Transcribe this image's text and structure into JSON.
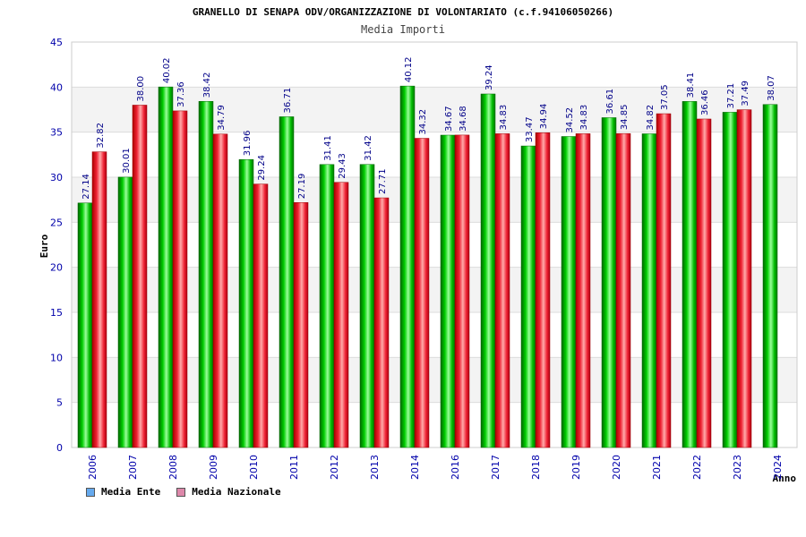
{
  "chart_data": {
    "type": "bar",
    "title": "GRANELLO DI SENAPA ODV/ORGANIZZAZIONE DI VOLONTARIATO (c.f.94106050266)",
    "subtitle": "Media Importi",
    "xlabel": "Anno",
    "ylabel": "Euro",
    "ylim": [
      0,
      45
    ],
    "yticks": [
      "0",
      "5",
      "10",
      "15",
      "20",
      "25",
      "30",
      "35",
      "40",
      "45"
    ],
    "grid": true,
    "legend_position": "bottom-left",
    "categories": [
      "2006",
      "2007",
      "2008",
      "2009",
      "2010",
      "2011",
      "2012",
      "2013",
      "2014",
      "2016",
      "2017",
      "2018",
      "2019",
      "2020",
      "2021",
      "2022",
      "2023",
      "2024"
    ],
    "series": [
      {
        "name": "Media Ente",
        "color": "#00bb00",
        "legend_color": "#66aaee",
        "values": [
          27.14,
          30.01,
          40.02,
          38.42,
          31.96,
          36.71,
          31.41,
          31.42,
          40.12,
          34.67,
          39.24,
          33.47,
          34.52,
          36.61,
          34.82,
          38.41,
          37.21,
          38.07
        ],
        "labels": [
          "27.14",
          "30.01",
          "40.02",
          "38.42",
          "31.96",
          "36.71",
          "31.41",
          "31.42",
          "40.12",
          "34.67",
          "39.24",
          "33.47",
          "34.52",
          "36.61",
          "34.82",
          "38.41",
          "37.21",
          "38.07"
        ]
      },
      {
        "name": "Media Nazionale",
        "color": "#ee2233",
        "legend_color": "#dd88aa",
        "values": [
          32.82,
          38.0,
          37.36,
          34.79,
          29.24,
          27.19,
          29.43,
          27.71,
          34.32,
          34.68,
          34.83,
          34.94,
          34.83,
          34.85,
          37.05,
          36.46,
          37.49,
          null
        ],
        "labels": [
          "32.82",
          "38.00",
          "37.36",
          "34.79",
          "29.24",
          "27.19",
          "29.43",
          "27.71",
          "34.32",
          "34.68",
          "34.83",
          "34.94",
          "34.83",
          "34.85",
          "37.05",
          "36.46",
          "37.49",
          null
        ]
      }
    ]
  }
}
